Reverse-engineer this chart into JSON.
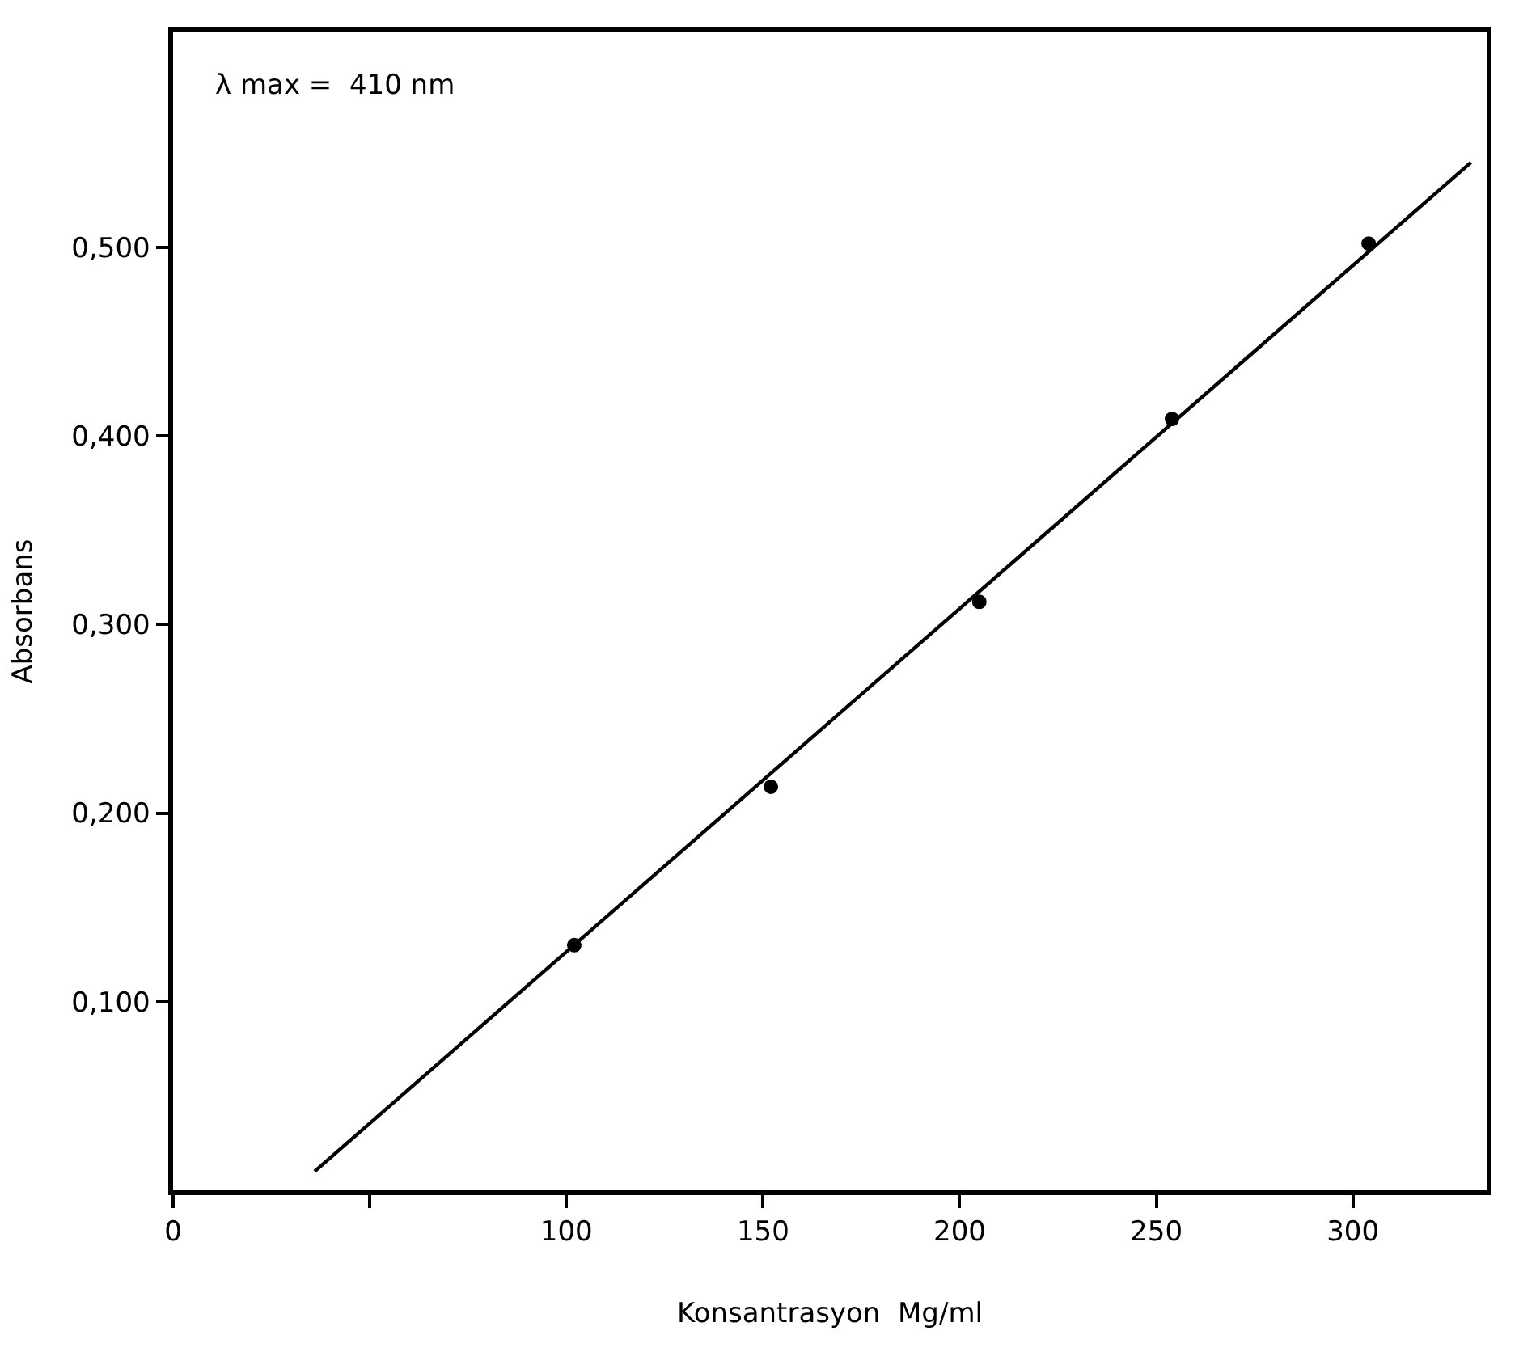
{
  "chart_data": {
    "type": "scatter",
    "xlabel": "Konsantrasyon  Mg/ml",
    "ylabel": "Absorbans",
    "annotations": [
      "λ max =  410 nm"
    ],
    "xlim": [
      0,
      334
    ],
    "ylim": [
      0,
      0.614
    ],
    "xticks": [
      0,
      {
        "value": 50,
        "label": null
      },
      100,
      150,
      200,
      250,
      300
    ],
    "yticks": [
      {
        "value": 0.1,
        "label": "0,100"
      },
      {
        "value": 0.2,
        "label": "0,200"
      },
      {
        "value": 0.3,
        "label": "0,300"
      },
      {
        "value": 0.4,
        "label": "0,400"
      },
      {
        "value": 0.5,
        "label": "0,500"
      }
    ],
    "series": [
      {
        "color": "#000000",
        "marker": "circle",
        "x": [
          102,
          152,
          205,
          254,
          304
        ],
        "values": [
          0.13,
          0.214,
          0.312,
          0.409,
          0.502
        ]
      },
      {
        "type": "line",
        "color": "#000000",
        "marker": "none",
        "line_style": "solid",
        "x": [
          36,
          330
        ],
        "values": [
          0.01,
          0.545
        ]
      }
    ]
  }
}
